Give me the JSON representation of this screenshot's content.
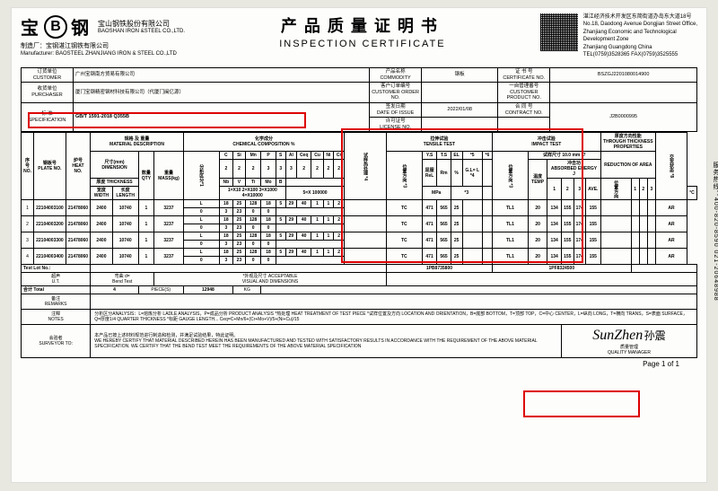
{
  "header": {
    "brand_cn_left": "宝",
    "brand_cn_right": "钢",
    "logo_letter": "B",
    "company_cn": "宝山钢铁股份有限公司",
    "company_en": "BAOSHAN IRON &STEEL CO.,LTD.",
    "title_cn": "产品质量证明书",
    "title_en": "INSPECTION CERTIFICATE",
    "addr1": "湛江经济技术开发区东简街道办岛东大道18号",
    "addr2": "No.18, Daodong Avenue Dongjian Street Office,",
    "addr3": "Zhanjiang Economic and Technological",
    "addr4": "Development Zone",
    "addr5": "Zhanjiang Guangdong China",
    "addr6": "TEL(0759)3528365 FAX(0759)3525555",
    "mfr_label_cn": "制造厂：",
    "mfr_label_en": "Manufacturer:",
    "mfr_cn": "宝钢湛江钢铁有限公司",
    "mfr_en": "BAOSTEEL ZHANJIANG IRON & STEEL CO.,LTD"
  },
  "info": {
    "customer_label": "订货单位\nCUSTOMER",
    "customer": "广州宝钢南方贸易有限公司",
    "product_label": "产品名称\nCOMMODITY",
    "product": "钢板",
    "cert_label": "证 书 号\nCERTIFICATE NO.",
    "cert": "BSZGJ2201080014900",
    "purchaser_label": "收货单位\nPURCHASER",
    "purchaser": "厦门宝钢精密钢材科技有限公司（代厦门闽亿源）",
    "order_label": "客户订单编号\nCUSTOMER ORDER NO.",
    "customer_product_label": "一自管理番号\nCUSTOMER PRODUCT NO.",
    "spec_label": "标 准\nSPECIFICATION",
    "spec": "GB/T 1591-2018 Q355B",
    "date_label": "签发日期\nDATE OF ISSUE",
    "date": "2022/01/08",
    "license_label": "许可证号\nLICENSE NO.",
    "contract_label": "合 同 号\nCONTRACT NO.",
    "contract": "J2B0000995"
  },
  "cols": {
    "seq": "序号\nNO.",
    "plate": "钢板号\nPLATE NO.",
    "heat": "炉号\nHEAT NO.",
    "dim_grp": "规格 及 重量\nMATERIAL DESCRIPTION",
    "dim": "尺寸(mm)\nDIMENSION",
    "qty": "数量\nQTY",
    "mass": "重量\nMASS(kg)",
    "chem_grp": "化学成分\nCHEMICAL COMPOSITION %",
    "tensile_grp": "拉伸试验\nTENSILE TEST",
    "impact_grp": "冲击试验\nIMPACT TEST",
    "thick_grp": "厚度方向性能\nTHROUGH THICKNESS PROPERTIES",
    "width": "宽度\nWIDTH",
    "length": "长度\nLENGTH",
    "thickness": "厚度 THICKNESS",
    "temp": "温度\nTEMP",
    "energy": "冲击功\nABSORBED ENERGY J",
    "reduction": "REDUCTION OF AREA"
  },
  "chem_labels1": [
    "C",
    "Si",
    "Mn",
    "P",
    "S",
    "Al",
    "Ceq",
    "Cu",
    "Ni",
    "Cr"
  ],
  "chem_labels2": [
    "Nb",
    "V",
    "Ti",
    "Mo",
    "B"
  ],
  "chem_scale": "1=X10  2=X100  3=X1000  4=X10000",
  "chem_scale2": "5=X 100000",
  "tensile_labels": [
    "Y.S",
    "T.S",
    "EL",
    "*5",
    "*6"
  ],
  "tensile_units": "MPa",
  "rows": [
    {
      "n": "1",
      "plate": "22104003100",
      "heat": "21478060",
      "w": "2400",
      "l": "10740",
      "q": "1",
      "m": "3237",
      "chem": [
        "L",
        "18",
        "25",
        "128",
        "18",
        "5",
        "29",
        "40",
        "1",
        "1",
        "2"
      ],
      "chem2": [
        "0",
        "3",
        "23",
        "0",
        "0"
      ],
      "t1": "TC",
      "ys": "471",
      "ts": "565",
      "el": "25",
      "imp_t": "TL1",
      "imp_c": "20",
      "e1": "134",
      "e2": "155",
      "e3": "174",
      "av": "155",
      "aa": "AR"
    },
    {
      "n": "2",
      "plate": "22104003200",
      "heat": "21478060",
      "w": "2400",
      "l": "10740",
      "q": "1",
      "m": "3237",
      "chem": [
        "L",
        "18",
        "25",
        "128",
        "18",
        "5",
        "29",
        "40",
        "1",
        "1",
        "2"
      ],
      "chem2": [
        "0",
        "3",
        "23",
        "0",
        "0"
      ],
      "t1": "TC",
      "ys": "471",
      "ts": "565",
      "el": "25",
      "imp_t": "TL1",
      "imp_c": "20",
      "e1": "134",
      "e2": "155",
      "e3": "174",
      "av": "155",
      "aa": "AR"
    },
    {
      "n": "3",
      "plate": "22104003300",
      "heat": "21478060",
      "w": "2400",
      "l": "10740",
      "q": "1",
      "m": "3237",
      "chem": [
        "L",
        "18",
        "25",
        "128",
        "18",
        "5",
        "29",
        "40",
        "1",
        "1",
        "2"
      ],
      "chem2": [
        "0",
        "3",
        "23",
        "0",
        "0"
      ],
      "t1": "TC",
      "ys": "471",
      "ts": "565",
      "el": "25",
      "imp_t": "TL1",
      "imp_c": "20",
      "e1": "134",
      "e2": "155",
      "e3": "174",
      "av": "155",
      "aa": "AR"
    },
    {
      "n": "4",
      "plate": "22104003400",
      "heat": "21478060",
      "w": "2400",
      "l": "10740",
      "q": "1",
      "m": "3237",
      "chem": [
        "L",
        "18",
        "25",
        "128",
        "18",
        "5",
        "29",
        "40",
        "1",
        "1",
        "2"
      ],
      "chem2": [
        "0",
        "3",
        "23",
        "0",
        "0"
      ],
      "t1": "TC",
      "ys": "471",
      "ts": "565",
      "el": "25",
      "imp_t": "TL1",
      "imp_c": "20",
      "e1": "134",
      "e2": "155",
      "e3": "174",
      "av": "155",
      "aa": "AR"
    }
  ],
  "test_lot": "Test Lot No.:",
  "lot1": "1PB8735800",
  "lot2": "1PF8324500",
  "ut": "超声\nU.T.",
  "bend": "弯曲 d=\nBend Test",
  "visual": "*外观及尺寸 ACCEPTABLE\nVISUAL AND DIMENSIONS",
  "total_label": "合计    Total",
  "total_qty": "4",
  "total_pcs": "PIECE(S)",
  "total_mass": "12948",
  "total_kg": "KG",
  "remarks_label": "备注\nREMARKS",
  "notes_label": "注释\nNOTES",
  "notes_text": "分析区分ANALYSIS：L=熔炼分析 LADLE ANALYSIS，P=成品分析 PRODUCT ANALYSIS  *热处理 HEAT TREATMENT OF TEST PIECE  *试样位置及方向 LOCATION AND ORIENTATION，B=底部 BOTTOM，T=顶部 TOP，C=中心 CENTER，L=纵向 LONG，T=横向 TRANS，S=表面 SURFACE，Q=厚度1/4 QUARTER THICKNESS  *标距 GAUGE LENGTH... Ceq=C+Mn/6+(Cr+Mo+V)/5+(Ni+Cu)/15",
  "cert_text": "本产品已按上述材料规范进行制造和检测，并满足试验结果，特此证明。\nWE HEREBY CERTIFY THAT MATERIAL DESCRIBED HEREIN HAS BEEN MANUFACTURED AND TESTED WITH SATISFACTORY RESULTS IN ACCORDANCE WITH THE REQUIREMENT OF THE ABOVE MATERIAL SPECIFICATION. WE CERTIFY THAT THE BEND TEST MEET THE REQUIREMENTS OF THE ABOVE MATERIAL SPECIFICATION",
  "surveyor_label": "会验者\nSURVEYOR TO:",
  "qm_label": "质量管理\nQUALITY MANAGER",
  "signature": "SunZhen",
  "sig2": "孙震",
  "page": "Page   1   of   1",
  "side": "服务热线：400-820-8590  021-20648988",
  "colors": {
    "red": "#d00000",
    "paper": "#fdfdfb",
    "bg": "#e8e8e0"
  }
}
